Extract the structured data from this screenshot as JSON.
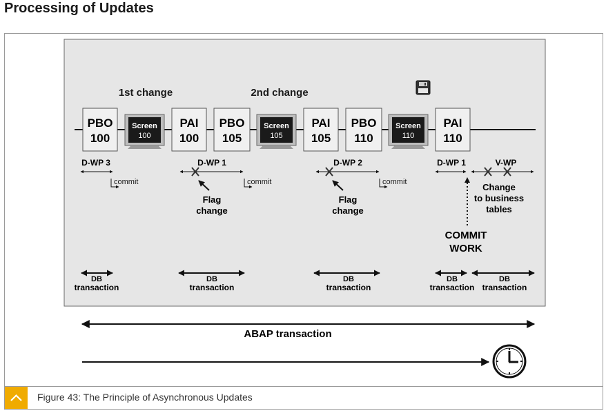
{
  "page_title": "Processing of Updates",
  "caption": "Figure 43: The Principle of Asynchronous Updates",
  "colors": {
    "accent": "#f0ab00",
    "panel": "#e6e6e6",
    "box": "#f0f0f0",
    "screen": "#1a1a1a"
  },
  "diagram": {
    "change_labels": [
      "1st change",
      "2nd change"
    ],
    "steps": [
      {
        "kind": "process",
        "top": "PBO",
        "num": "100"
      },
      {
        "kind": "screen",
        "top": "Screen",
        "num": "100"
      },
      {
        "kind": "process",
        "top": "PAI",
        "num": "100"
      },
      {
        "kind": "process",
        "top": "PBO",
        "num": "105"
      },
      {
        "kind": "screen",
        "top": "Screen",
        "num": "105"
      },
      {
        "kind": "process",
        "top": "PAI",
        "num": "105"
      },
      {
        "kind": "process",
        "top": "PBO",
        "num": "110"
      },
      {
        "kind": "screen",
        "top": "Screen",
        "num": "110"
      },
      {
        "kind": "process",
        "top": "PAI",
        "num": "110"
      }
    ],
    "work_processes": [
      "D-WP 3",
      "D-WP 1",
      "D-WP 2",
      "D-WP 1",
      "V-WP"
    ],
    "commit_labels": [
      "commit",
      "commit",
      "commit"
    ],
    "flag_change_labels": [
      "Flag",
      "change",
      "Flag",
      "change"
    ],
    "business_change_labels": [
      "Change",
      "to business",
      "tables"
    ],
    "commit_work": [
      "COMMIT",
      "WORK"
    ],
    "db_transaction": [
      "DB",
      "transaction"
    ],
    "abap_transaction": "ABAP transaction",
    "icons": [
      "save-icon",
      "clock-icon",
      "chevron-up-icon"
    ]
  }
}
